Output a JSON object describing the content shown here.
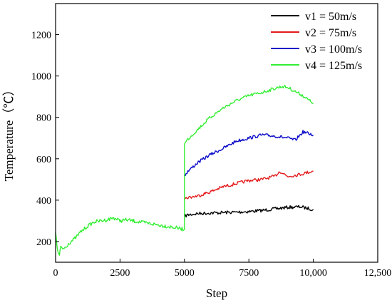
{
  "chart_data": {
    "type": "line",
    "title": "",
    "xlabel": "Step",
    "ylabel": "Temperature（℃）",
    "xlim": [
      0,
      12500
    ],
    "ylim": [
      100,
      1350
    ],
    "xticks": [
      0,
      2500,
      5000,
      7500,
      10000,
      12500
    ],
    "xtick_labels": [
      "0",
      "2500",
      "5000",
      "7500",
      "10,000",
      "12,500"
    ],
    "yticks": [
      200,
      400,
      600,
      800,
      1000,
      1200
    ],
    "ytick_labels": [
      "200",
      "400",
      "600",
      "800",
      "1000",
      "1200"
    ],
    "grid": false,
    "legend_position": "top-right",
    "shared": {
      "x": [
        0,
        50,
        100,
        150,
        200,
        300,
        400,
        500,
        750,
        1000,
        1250,
        1500,
        1750,
        2000,
        2250,
        2500,
        2750,
        3000,
        3250,
        3500,
        3750,
        4000,
        4250,
        4500,
        4750,
        5000
      ],
      "y": [
        245,
        180,
        145,
        130,
        175,
        165,
        175,
        190,
        215,
        250,
        275,
        295,
        300,
        305,
        315,
        300,
        305,
        300,
        295,
        290,
        285,
        280,
        275,
        270,
        265,
        258
      ]
    },
    "series": [
      {
        "name": "v1 = 50m/s",
        "color": "#000000",
        "x": [
          5000,
          5100,
          5500,
          6000,
          6500,
          7000,
          7500,
          8000,
          8500,
          9000,
          9500,
          9800,
          10000
        ],
        "y": [
          320,
          328,
          335,
          338,
          340,
          342,
          345,
          350,
          358,
          365,
          368,
          360,
          355
        ]
      },
      {
        "name": "v2 = 75m/s",
        "color": "#e31a1c",
        "x": [
          5000,
          5100,
          5500,
          6000,
          6500,
          7000,
          7500,
          8000,
          8500,
          8700,
          9000,
          9500,
          9800,
          10000
        ],
        "y": [
          405,
          412,
          420,
          440,
          465,
          480,
          495,
          500,
          515,
          540,
          515,
          525,
          535,
          540
        ]
      },
      {
        "name": "v3 = 100m/s",
        "color": "#0a0ac8",
        "x": [
          5000,
          5100,
          5500,
          6000,
          6500,
          7000,
          7500,
          8000,
          8500,
          9000,
          9300,
          9600,
          10000
        ],
        "y": [
          520,
          535,
          580,
          620,
          650,
          685,
          700,
          715,
          710,
          700,
          690,
          730,
          715
        ]
      },
      {
        "name": "v4 = 125m/s",
        "color": "#33ee33",
        "x": [
          5000,
          5100,
          5500,
          6000,
          6500,
          7000,
          7500,
          8000,
          8500,
          8800,
          9000,
          9300,
          9600,
          9800,
          10000
        ],
        "y": [
          670,
          690,
          740,
          800,
          845,
          880,
          905,
          920,
          940,
          950,
          945,
          925,
          905,
          885,
          870
        ]
      }
    ]
  }
}
